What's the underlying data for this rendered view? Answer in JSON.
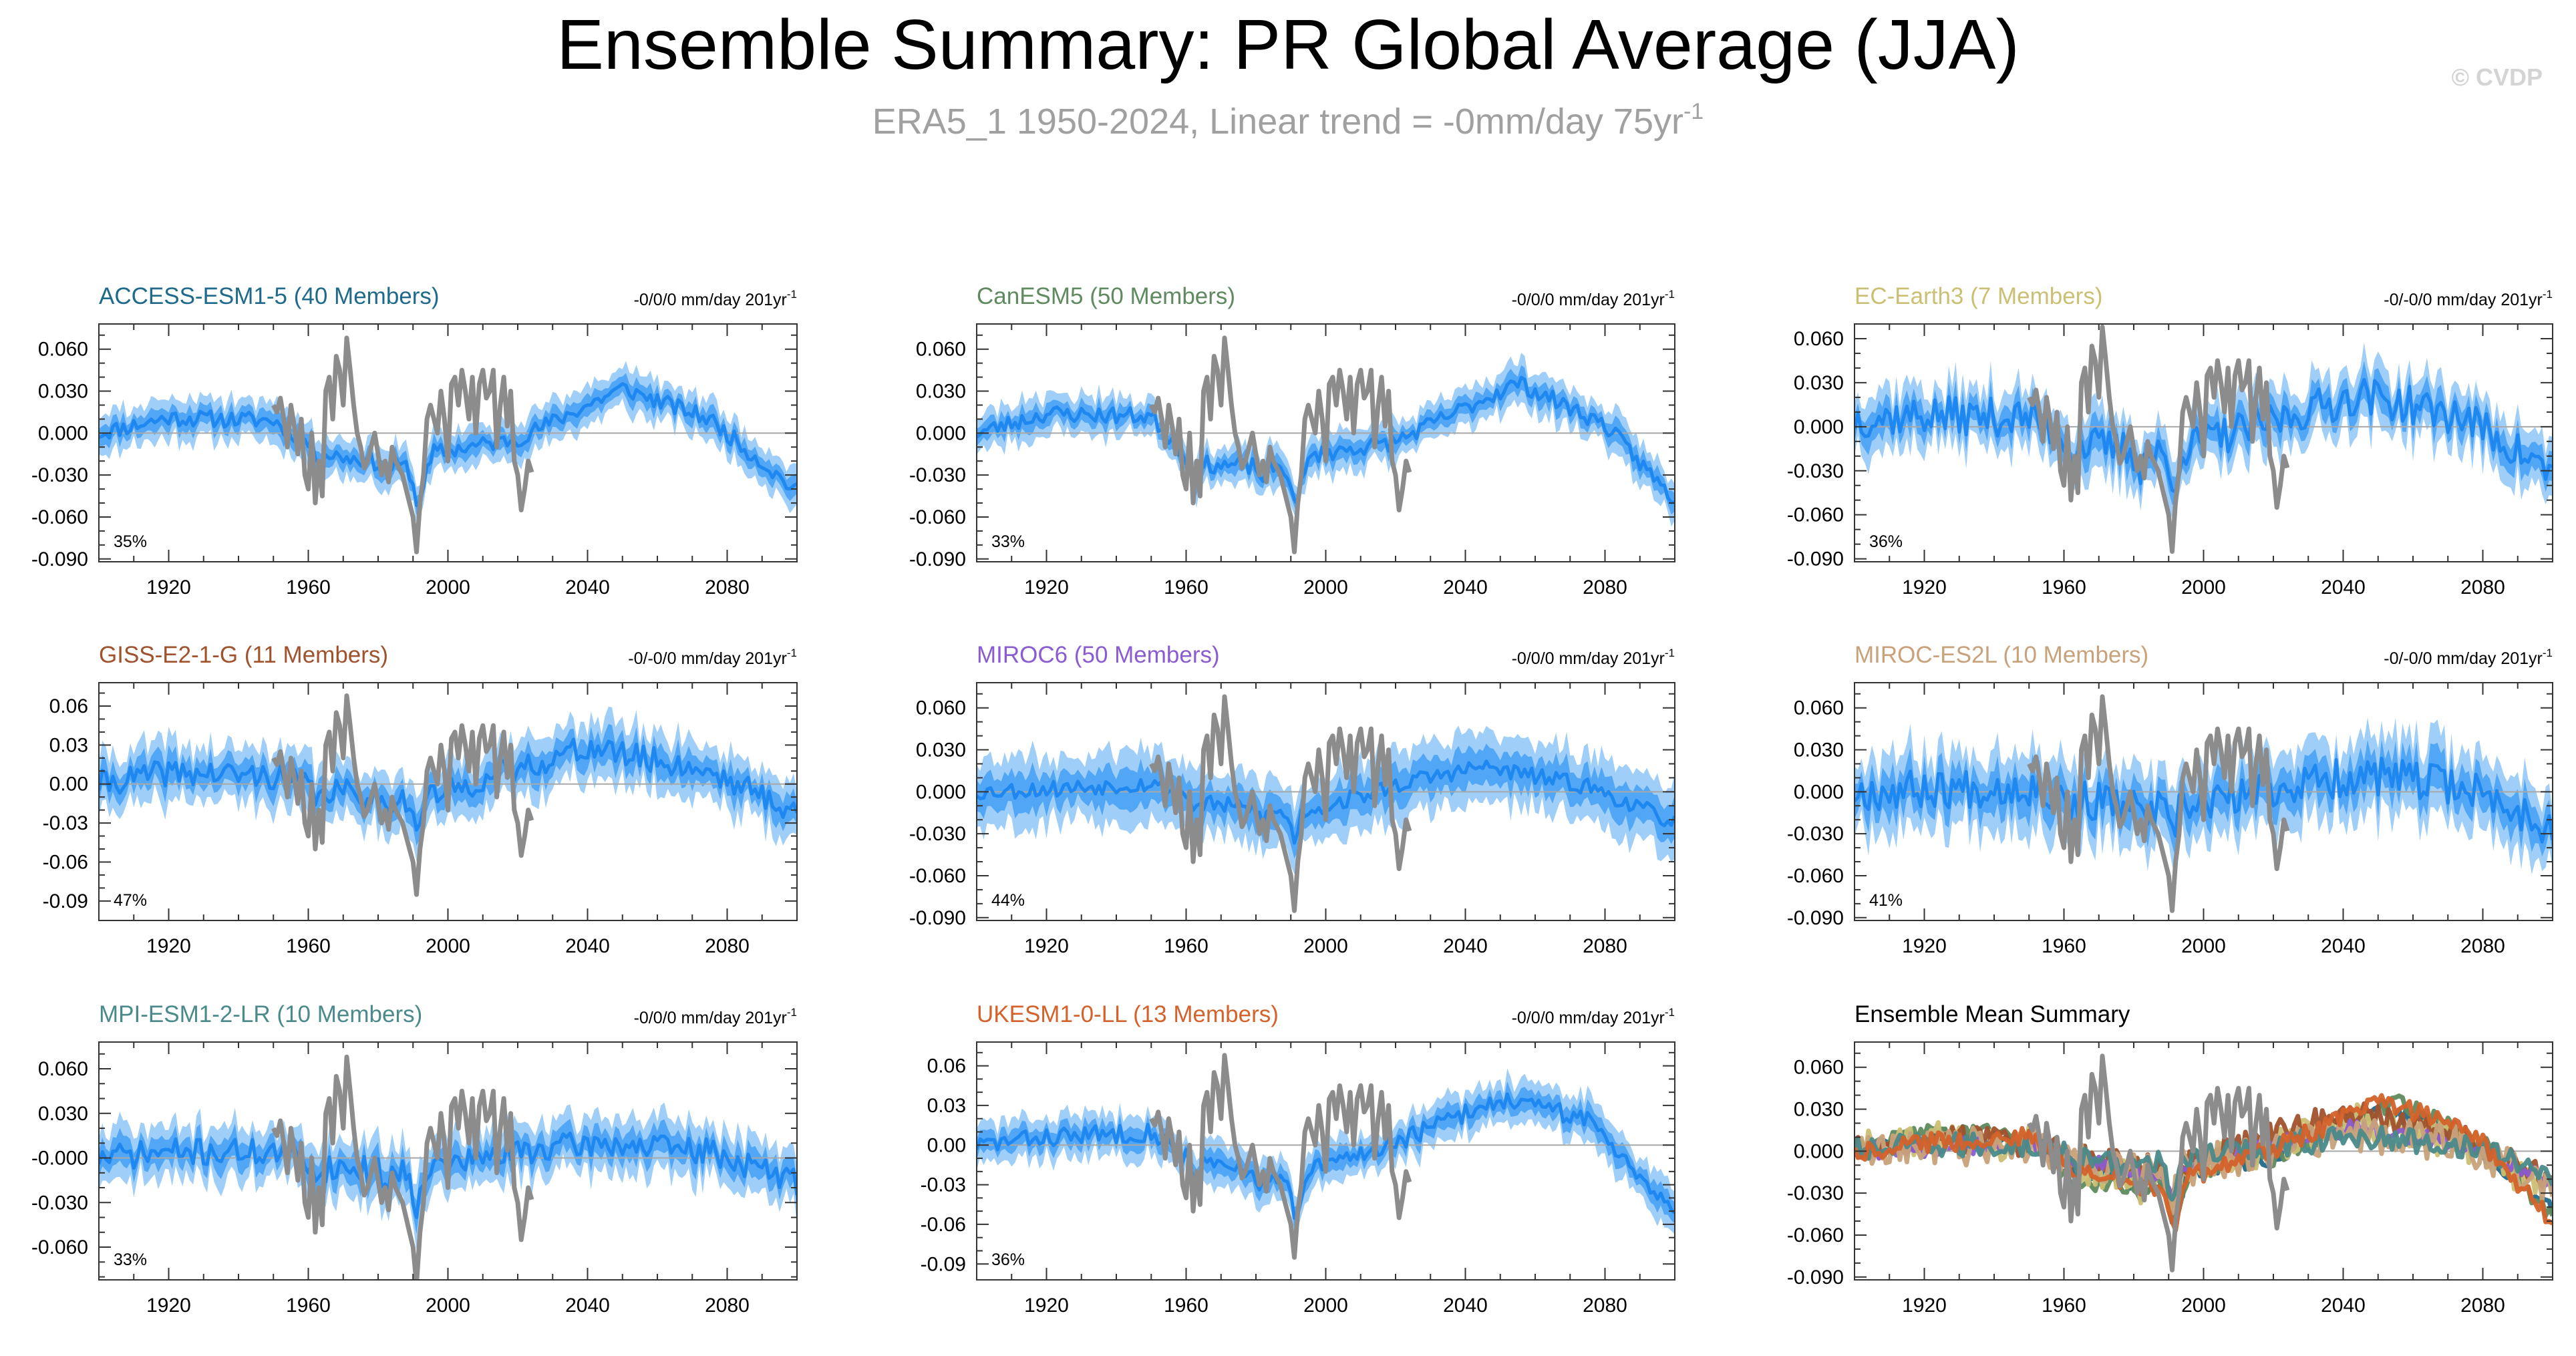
{
  "title": "Ensemble Summary: PR Global Average (JJA)",
  "subtitle": {
    "text": "ERA5_1 1950-2024, Linear trend = -0mm/day 75yr",
    "superscript": "-1"
  },
  "watermark": "© CVDP",
  "colors": {
    "obs": "#8c8c8c",
    "ensemble_mean": "#1e88f0",
    "spread_inner": "#3d9cf5",
    "spread_outer": "#9fcff9",
    "zero_line": "#a8a8a8",
    "frame": "#333333"
  },
  "observations": {
    "name": "ERA5_1",
    "years": [
      1950,
      1951,
      1952,
      1953,
      1954,
      1955,
      1956,
      1957,
      1958,
      1959,
      1960,
      1961,
      1962,
      1963,
      1964,
      1965,
      1966,
      1967,
      1968,
      1969,
      1970,
      1971,
      1972,
      1973,
      1974,
      1975,
      1976,
      1977,
      1978,
      1979,
      1980,
      1981,
      1982,
      1983,
      1984,
      1985,
      1986,
      1987,
      1988,
      1989,
      1990,
      1991,
      1992,
      1993,
      1994,
      1995,
      1996,
      1997,
      1998,
      1999,
      2000,
      2001,
      2002,
      2003,
      2004,
      2005,
      2006,
      2007,
      2008,
      2009,
      2010,
      2011,
      2012,
      2013,
      2014,
      2015,
      2016,
      2017,
      2018,
      2019,
      2020,
      2021,
      2022,
      2023,
      2024
    ],
    "values": [
      0.02,
      0.015,
      0.025,
      0.01,
      -0.01,
      0.02,
      0.005,
      -0.015,
      0.01,
      -0.03,
      -0.04,
      0.0,
      -0.05,
      -0.02,
      -0.045,
      0.03,
      0.04,
      0.01,
      0.055,
      0.045,
      0.02,
      0.068,
      0.045,
      0.02,
      0.0,
      -0.01,
      -0.025,
      -0.02,
      -0.01,
      0.0,
      -0.015,
      -0.03,
      -0.02,
      -0.035,
      -0.01,
      -0.02,
      -0.025,
      -0.03,
      -0.04,
      -0.05,
      -0.06,
      -0.085,
      -0.05,
      -0.03,
      0.01,
      0.02,
      0.01,
      0.0,
      0.03,
      0.01,
      -0.02,
      0.035,
      0.04,
      0.02,
      0.045,
      0.03,
      0.01,
      0.04,
      0.0,
      0.035,
      0.045,
      0.025,
      0.03,
      0.045,
      -0.01,
      0.02,
      0.04,
      0.005,
      0.03,
      -0.02,
      -0.03,
      -0.055,
      -0.04,
      -0.02,
      -0.028
    ]
  },
  "chart_data": [
    {
      "type": "area",
      "model": "ACCESS-ESM1-5",
      "title": "ACCESS-ESM1-5 (40 Members)",
      "title_color": "#1f6a8c",
      "trend_label": "-0/0/0 mm/day 201yr",
      "trend_superscript": "-1",
      "percent_label": "35%",
      "yticks": [
        0.06,
        0.03,
        0.0,
        -0.03,
        -0.06,
        -0.09
      ],
      "ytick_labels": [
        "0.060",
        "0.030",
        "0.000",
        "-0.030",
        "-0.060",
        "-0.090"
      ],
      "ylim": [
        -0.092,
        0.078
      ],
      "xlim": [
        1900,
        2100
      ],
      "xticks": [
        1920,
        1960,
        2000,
        2040,
        2080
      ],
      "xtick_labels": [
        "1920",
        "1960",
        "2000",
        "2040",
        "2080"
      ],
      "shape": {
        "anchors": [
          [
            1900,
            0.0
          ],
          [
            1920,
            0.011
          ],
          [
            1950,
            0.009
          ],
          [
            1965,
            -0.015
          ],
          [
            1990,
            -0.025
          ],
          [
            1993,
            -0.035
          ],
          [
            1996,
            -0.014
          ],
          [
            2020,
            -0.004
          ],
          [
            2050,
            0.032
          ],
          [
            2075,
            0.01
          ],
          [
            2100,
            -0.042
          ]
        ],
        "dips": [
          [
            1963,
            -0.006
          ],
          [
            1982,
            -0.008
          ],
          [
            1991,
            -0.022
          ]
        ],
        "noise": 0.006,
        "sd": 0.007,
        "seed": 11
      }
    },
    {
      "type": "area",
      "model": "CanESM5",
      "title": "CanESM5 (50 Members)",
      "title_color": "#5f8a5f",
      "trend_label": "-0/0/0 mm/day 201yr",
      "trend_superscript": "-1",
      "percent_label": "33%",
      "yticks": [
        0.06,
        0.03,
        0.0,
        -0.03,
        -0.06,
        -0.09
      ],
      "ytick_labels": [
        "0.060",
        "0.030",
        "0.000",
        "-0.030",
        "-0.060",
        "-0.090"
      ],
      "ylim": [
        -0.092,
        0.078
      ],
      "xlim": [
        1900,
        2100
      ],
      "xticks": [
        1920,
        1960,
        2000,
        2040,
        2080
      ],
      "xtick_labels": [
        "1920",
        "1960",
        "2000",
        "2040",
        "2080"
      ],
      "shape": {
        "anchors": [
          [
            1900,
            0.0
          ],
          [
            1920,
            0.014
          ],
          [
            1950,
            0.012
          ],
          [
            1962,
            -0.022
          ],
          [
            1990,
            -0.025
          ],
          [
            1993,
            -0.035
          ],
          [
            1996,
            -0.016
          ],
          [
            2020,
            -0.006
          ],
          [
            2055,
            0.036
          ],
          [
            2080,
            0.006
          ],
          [
            2100,
            -0.048
          ]
        ],
        "dips": [
          [
            1963,
            -0.008
          ],
          [
            1982,
            -0.008
          ],
          [
            1991,
            -0.024
          ]
        ],
        "noise": 0.006,
        "sd": 0.007,
        "seed": 23
      }
    },
    {
      "type": "area",
      "model": "EC-Earth3",
      "title": "EC-Earth3 (7 Members)",
      "title_color": "#cbbf74",
      "trend_label": "-0/-0/0 mm/day 201yr",
      "trend_superscript": "-1",
      "percent_label": "36%",
      "yticks": [
        0.06,
        0.03,
        0.0,
        -0.03,
        -0.06,
        -0.09
      ],
      "ytick_labels": [
        "0.060",
        "0.030",
        "0.000",
        "-0.030",
        "-0.060",
        "-0.090"
      ],
      "ylim": [
        -0.092,
        0.07
      ],
      "xlim": [
        1900,
        2100
      ],
      "xticks": [
        1920,
        1960,
        2000,
        2040,
        2080
      ],
      "xtick_labels": [
        "1920",
        "1960",
        "2000",
        "2040",
        "2080"
      ],
      "shape": {
        "anchors": [
          [
            1900,
            0.005
          ],
          [
            1920,
            0.008
          ],
          [
            1950,
            0.006
          ],
          [
            1965,
            -0.012
          ],
          [
            1990,
            -0.02
          ],
          [
            2000,
            -0.01
          ],
          [
            2020,
            0.004
          ],
          [
            2045,
            0.022
          ],
          [
            2075,
            0.006
          ],
          [
            2100,
            -0.032
          ]
        ],
        "dips": [
          [
            1963,
            -0.01
          ],
          [
            1982,
            -0.01
          ],
          [
            1991,
            -0.025
          ]
        ],
        "noise": 0.013,
        "sd": 0.01,
        "seed": 37
      }
    },
    {
      "type": "area",
      "model": "GISS-E2-1-G",
      "title": "GISS-E2-1-G (11 Members)",
      "title_color": "#a0522d",
      "trend_label": "-0/-0/0 mm/day 201yr",
      "trend_superscript": "-1",
      "percent_label": "47%",
      "yticks": [
        0.06,
        0.03,
        0.0,
        -0.03,
        -0.06,
        -0.09
      ],
      "ytick_labels": [
        "0.06",
        "0.03",
        "0.00",
        "-0.03",
        "-0.06",
        "-0.09"
      ],
      "ylim": [
        -0.105,
        0.078
      ],
      "xlim": [
        1900,
        2100
      ],
      "xticks": [
        1920,
        1960,
        2000,
        2040,
        2080
      ],
      "xtick_labels": [
        "1920",
        "1960",
        "2000",
        "2040",
        "2080"
      ],
      "shape": {
        "anchors": [
          [
            1900,
            0.0
          ],
          [
            1920,
            0.009
          ],
          [
            1950,
            0.006
          ],
          [
            1965,
            -0.005
          ],
          [
            1990,
            -0.012
          ],
          [
            2000,
            -0.006
          ],
          [
            2020,
            0.012
          ],
          [
            2040,
            0.028
          ],
          [
            2075,
            0.01
          ],
          [
            2100,
            -0.022
          ]
        ],
        "dips": [
          [
            1963,
            -0.01
          ],
          [
            1982,
            -0.008
          ],
          [
            1991,
            -0.028
          ]
        ],
        "noise": 0.01,
        "sd": 0.011,
        "seed": 41
      }
    },
    {
      "type": "area",
      "model": "MIROC6",
      "title": "MIROC6 (50 Members)",
      "title_color": "#8a5bd1",
      "trend_label": "-0/0/0 mm/day 201yr",
      "trend_superscript": "-1",
      "percent_label": "44%",
      "yticks": [
        0.06,
        0.03,
        0.0,
        -0.03,
        -0.06,
        -0.09
      ],
      "ytick_labels": [
        "0.060",
        "0.030",
        "0.000",
        "-0.030",
        "-0.060",
        "-0.090"
      ],
      "ylim": [
        -0.092,
        0.078
      ],
      "xlim": [
        1900,
        2100
      ],
      "xticks": [
        1920,
        1960,
        2000,
        2040,
        2080
      ],
      "xtick_labels": [
        "1920",
        "1960",
        "2000",
        "2040",
        "2080"
      ],
      "shape": {
        "anchors": [
          [
            1900,
            0.0
          ],
          [
            1920,
            0.002
          ],
          [
            1950,
            0.006
          ],
          [
            1965,
            -0.008
          ],
          [
            1990,
            -0.016
          ],
          [
            2000,
            -0.01
          ],
          [
            2025,
            0.008
          ],
          [
            2045,
            0.018
          ],
          [
            2075,
            0.004
          ],
          [
            2100,
            -0.022
          ]
        ],
        "dips": [
          [
            1963,
            -0.006
          ],
          [
            1982,
            -0.006
          ],
          [
            1991,
            -0.018
          ]
        ],
        "noise": 0.006,
        "sd": 0.012,
        "seed": 53
      }
    },
    {
      "type": "area",
      "model": "MIROC-ES2L",
      "title": "MIROC-ES2L (10 Members)",
      "title_color": "#c8a27a",
      "trend_label": "-0/-0/0 mm/day 201yr",
      "trend_superscript": "-1",
      "percent_label": "41%",
      "yticks": [
        0.06,
        0.03,
        0.0,
        -0.03,
        -0.06,
        -0.09
      ],
      "ytick_labels": [
        "0.060",
        "0.030",
        "0.000",
        "-0.030",
        "-0.060",
        "-0.090"
      ],
      "ylim": [
        -0.092,
        0.078
      ],
      "xlim": [
        1900,
        2100
      ],
      "xticks": [
        1920,
        1960,
        2000,
        2040,
        2080
      ],
      "xtick_labels": [
        "1920",
        "1960",
        "2000",
        "2040",
        "2080"
      ],
      "shape": {
        "anchors": [
          [
            1900,
            0.0
          ],
          [
            1920,
            0.002
          ],
          [
            1950,
            0.004
          ],
          [
            1965,
            -0.006
          ],
          [
            1990,
            -0.014
          ],
          [
            2000,
            -0.008
          ],
          [
            2025,
            0.004
          ],
          [
            2045,
            0.012
          ],
          [
            2075,
            0.004
          ],
          [
            2100,
            -0.026
          ]
        ],
        "dips": [
          [
            1963,
            -0.008
          ],
          [
            1982,
            -0.008
          ],
          [
            1991,
            -0.02
          ]
        ],
        "noise": 0.014,
        "sd": 0.013,
        "seed": 67
      }
    },
    {
      "type": "area",
      "model": "MPI-ESM1-2-LR",
      "title": "MPI-ESM1-2-LR (10 Members)",
      "title_color": "#4a8a8a",
      "trend_label": "-0/0/0 mm/day 201yr",
      "trend_superscript": "-1",
      "percent_label": "33%",
      "yticks": [
        0.06,
        0.03,
        0.0,
        -0.03,
        -0.06
      ],
      "ytick_labels": [
        "0.060",
        "0.030",
        "-0.000",
        "-0.030",
        "-0.060"
      ],
      "ylim": [
        -0.082,
        0.078
      ],
      "xlim": [
        1900,
        2100
      ],
      "xticks": [
        1920,
        1960,
        2000,
        2040,
        2080
      ],
      "xtick_labels": [
        "1920",
        "1960",
        "2000",
        "2040",
        "2080"
      ],
      "shape": {
        "anchors": [
          [
            1900,
            0.0
          ],
          [
            1920,
            0.004
          ],
          [
            1950,
            0.004
          ],
          [
            1965,
            -0.006
          ],
          [
            1990,
            -0.01
          ],
          [
            2000,
            -0.004
          ],
          [
            2025,
            0.006
          ],
          [
            2045,
            0.01
          ],
          [
            2075,
            0.004
          ],
          [
            2100,
            -0.016
          ]
        ],
        "dips": [
          [
            1963,
            -0.008
          ],
          [
            1982,
            -0.006
          ],
          [
            1991,
            -0.022
          ]
        ],
        "noise": 0.009,
        "sd": 0.009,
        "seed": 71
      }
    },
    {
      "type": "area",
      "model": "UKESM1-0-LL",
      "title": "UKESM1-0-LL (13 Members)",
      "title_color": "#d4622a",
      "trend_label": "-0/0/0 mm/day 201yr",
      "trend_superscript": "-1",
      "percent_label": "36%",
      "yticks": [
        0.06,
        0.03,
        0.0,
        -0.03,
        -0.06,
        -0.09
      ],
      "ytick_labels": [
        "0.06",
        "0.03",
        "0.00",
        "-0.03",
        "-0.06",
        "-0.09"
      ],
      "ylim": [
        -0.102,
        0.078
      ],
      "xlim": [
        1900,
        2100
      ],
      "xticks": [
        1920,
        1960,
        2000,
        2040,
        2080
      ],
      "xtick_labels": [
        "1920",
        "1960",
        "2000",
        "2040",
        "2080"
      ],
      "shape": {
        "anchors": [
          [
            1900,
            0.0
          ],
          [
            1920,
            0.006
          ],
          [
            1950,
            0.01
          ],
          [
            1962,
            -0.012
          ],
          [
            1990,
            -0.028
          ],
          [
            1993,
            -0.04
          ],
          [
            1996,
            -0.018
          ],
          [
            2020,
            0.002
          ],
          [
            2050,
            0.035
          ],
          [
            2075,
            0.02
          ],
          [
            2100,
            -0.05
          ]
        ],
        "dips": [
          [
            1963,
            -0.01
          ],
          [
            1982,
            -0.008
          ],
          [
            1991,
            -0.024
          ]
        ],
        "noise": 0.007,
        "sd": 0.008,
        "seed": 83
      }
    },
    {
      "type": "line",
      "title": "Ensemble Mean Summary",
      "title_color": "#000000",
      "yticks": [
        0.06,
        0.03,
        0.0,
        -0.03,
        -0.06,
        -0.09
      ],
      "ytick_labels": [
        "0.060",
        "0.030",
        "0.000",
        "-0.030",
        "-0.060",
        "-0.090"
      ],
      "ylim": [
        -0.092,
        0.078
      ],
      "xlim": [
        1900,
        2100
      ],
      "xticks": [
        1920,
        1960,
        2000,
        2040,
        2080
      ],
      "xtick_labels": [
        "1920",
        "1960",
        "2000",
        "2040",
        "2080"
      ],
      "series_colors": [
        "#1f6a8c",
        "#5f8a5f",
        "#cbbf74",
        "#a0522d",
        "#8a5bd1",
        "#c8a27a",
        "#4a8a8a",
        "#d4622a"
      ]
    }
  ]
}
